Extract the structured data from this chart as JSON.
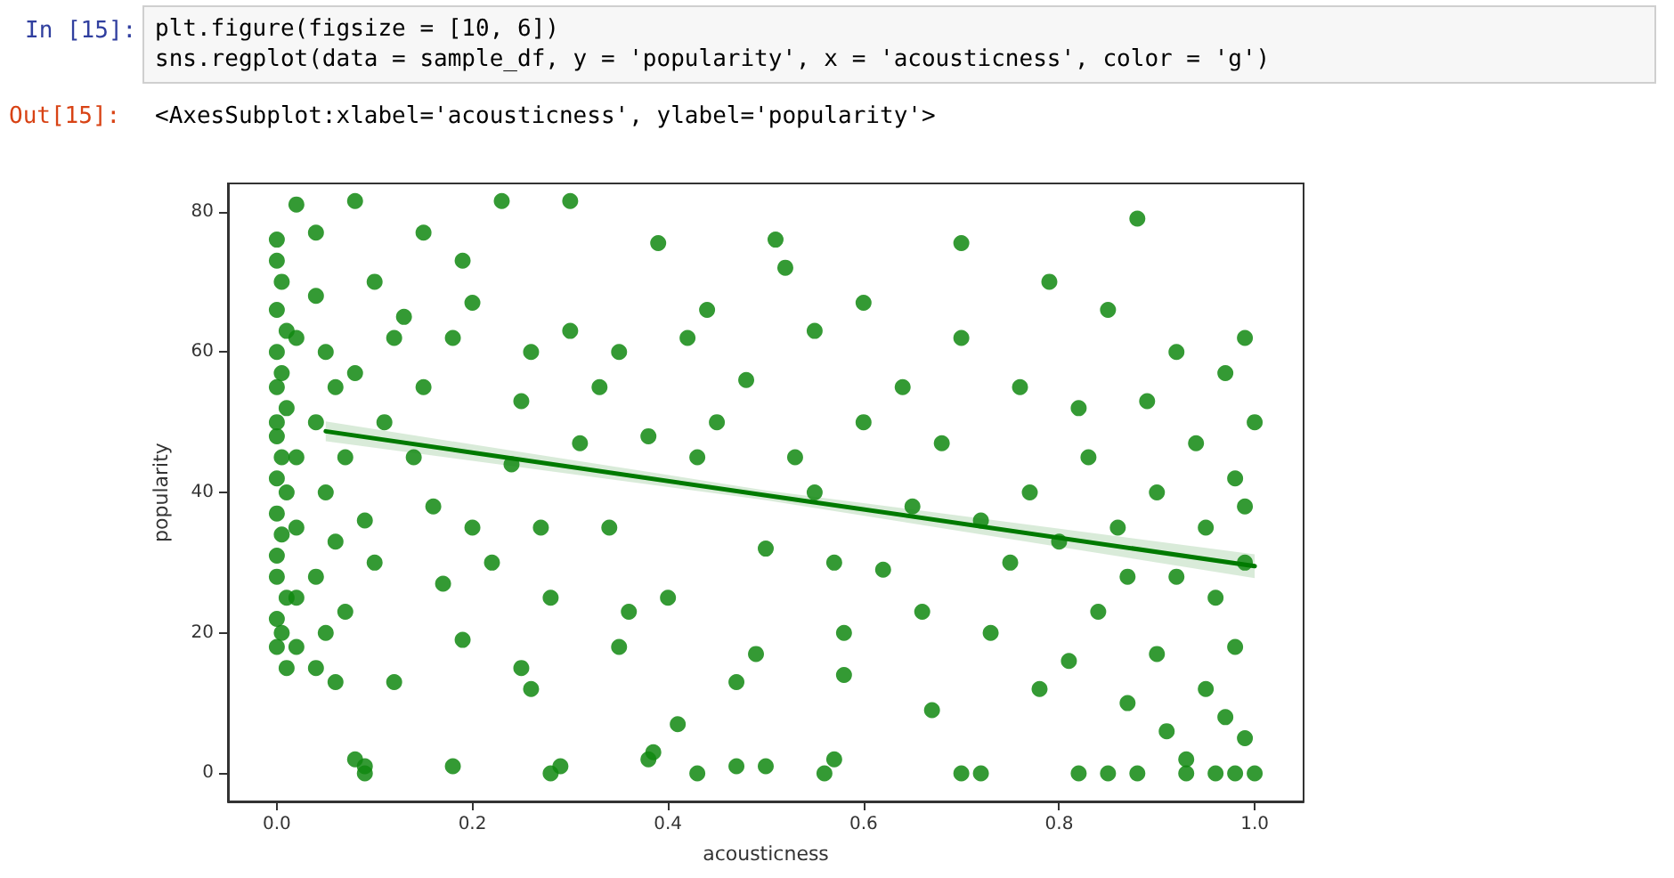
{
  "chart_data": {
    "type": "scatter",
    "annotations": [
      "In [15]:",
      "plt.figure(figsize = [10, 6])",
      "sns.regplot(data = sample_df, y = 'popularity', x = 'acousticness', color = 'g')",
      "Out[15]:",
      "<AxesSubplot:xlabel='acousticness', ylabel='popularity'>"
    ],
    "xlabel": "acousticness",
    "ylabel": "popularity",
    "xlim": [
      -0.05,
      1.05
    ],
    "ylim": [
      -4,
      84
    ],
    "xticks": [
      {
        "value": 0,
        "label": "0.0"
      },
      {
        "value": 0.2,
        "label": "0.2"
      },
      {
        "value": 0.4,
        "label": "0.4"
      },
      {
        "value": 0.6,
        "label": "0.6"
      },
      {
        "value": 0.8,
        "label": "0.8"
      },
      {
        "value": 1,
        "label": "1.0"
      }
    ],
    "yticks": [
      0,
      20,
      40,
      60,
      80
    ],
    "grid": false,
    "marker": "circle",
    "series": [
      {
        "color": "#118811",
        "x": [
          0.0,
          0.0,
          0.005,
          0.0,
          0.01,
          0.0,
          0.005,
          0.0,
          0.01,
          0.0,
          0.0,
          0.005,
          0.0,
          0.01,
          0.0,
          0.005,
          0.0,
          0.0,
          0.01,
          0.0,
          0.005,
          0.0,
          0.01,
          0.02,
          0.02,
          0.02,
          0.02,
          0.02,
          0.04,
          0.05,
          0.06,
          0.04,
          0.07,
          0.05,
          0.06,
          0.04,
          0.07,
          0.05,
          0.04,
          0.06,
          0.08,
          0.09,
          0.09,
          0.12,
          0.12,
          0.1,
          0.13,
          0.08,
          0.11,
          0.09,
          0.1,
          0.15,
          0.14,
          0.16,
          0.17,
          0.18,
          0.19,
          0.2,
          0.18,
          0.2,
          0.19,
          0.22,
          0.24,
          0.26,
          0.25,
          0.27,
          0.28,
          0.25,
          0.26,
          0.28,
          0.29,
          0.3,
          0.31,
          0.33,
          0.35,
          0.34,
          0.36,
          0.35,
          0.38,
          0.38,
          0.385,
          0.4,
          0.41,
          0.42,
          0.43,
          0.44,
          0.43,
          0.45,
          0.47,
          0.47,
          0.49,
          0.5,
          0.5,
          0.48,
          0.52,
          0.53,
          0.55,
          0.55,
          0.57,
          0.58,
          0.58,
          0.57,
          0.56,
          0.6,
          0.6,
          0.62,
          0.64,
          0.65,
          0.66,
          0.67,
          0.68,
          0.7,
          0.72,
          0.7,
          0.72,
          0.73,
          0.75,
          0.76,
          0.77,
          0.78,
          0.79,
          0.8,
          0.81,
          0.82,
          0.82,
          0.83,
          0.84,
          0.85,
          0.85,
          0.86,
          0.87,
          0.87,
          0.88,
          0.89,
          0.9,
          0.9,
          0.91,
          0.92,
          0.92,
          0.93,
          0.93,
          0.94,
          0.95,
          0.95,
          0.96,
          0.96,
          0.97,
          0.97,
          0.98,
          0.98,
          0.98,
          0.99,
          0.99,
          0.99,
          1.0,
          1.0,
          0.99,
          0.88,
          0.39,
          0.51,
          0.7,
          0.02,
          0.08,
          0.23,
          0.3,
          0.04,
          0.15
        ],
        "values": [
          76,
          73,
          70,
          66,
          63,
          60,
          57,
          55,
          52,
          50,
          48,
          45,
          42,
          40,
          37,
          34,
          31,
          28,
          25,
          22,
          20,
          18,
          15,
          62,
          45,
          35,
          25,
          18,
          68,
          60,
          55,
          50,
          45,
          40,
          33,
          28,
          23,
          20,
          15,
          13,
          2,
          0,
          1,
          13,
          62,
          70,
          65,
          57,
          50,
          36,
          30,
          55,
          45,
          38,
          27,
          62,
          73,
          67,
          1,
          35,
          19,
          30,
          44,
          60,
          53,
          35,
          25,
          15,
          12,
          0,
          1,
          63,
          47,
          55,
          60,
          35,
          23,
          18,
          48,
          2,
          3,
          25,
          7,
          62,
          45,
          66,
          0,
          50,
          13,
          1,
          17,
          32,
          1,
          56,
          72,
          45,
          63,
          40,
          30,
          20,
          14,
          2,
          0,
          50,
          67,
          29,
          55,
          38,
          23,
          9,
          47,
          0,
          0,
          62,
          36,
          20,
          30,
          55,
          40,
          12,
          70,
          33,
          16,
          0,
          52,
          45,
          23,
          66,
          0,
          35,
          28,
          10,
          0,
          53,
          40,
          17,
          6,
          28,
          60,
          2,
          0,
          47,
          35,
          12,
          0,
          25,
          8,
          57,
          42,
          18,
          0,
          5,
          30,
          62,
          0,
          50,
          38,
          79,
          75.5,
          76,
          75.5,
          81,
          81.5,
          81.5,
          81.5,
          77,
          77
        ]
      },
      {
        "type": "line",
        "marker": "none",
        "color": "#007a00",
        "x": [
          0.05,
          0.5,
          1.0
        ],
        "values": [
          48.7,
          39.6,
          29.5
        ],
        "lower": [
          47.3,
          38.9,
          27.8
        ],
        "upper": [
          50.1,
          40.3,
          31.2
        ]
      }
    ]
  }
}
